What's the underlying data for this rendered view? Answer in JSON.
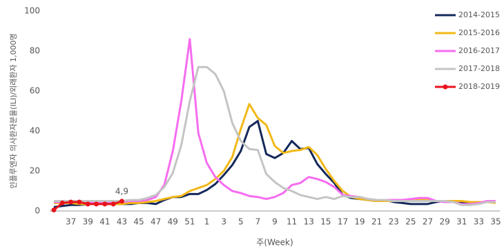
{
  "chart_data": {
    "type": "line",
    "y_label": "인플루엔자 의사환자분율(ILI)/외래환자 1,000명",
    "x_label": "주(Week)",
    "categories": [
      null,
      null,
      "37",
      null,
      "39",
      null,
      "41",
      null,
      "43",
      null,
      "45",
      null,
      "47",
      null,
      "49",
      null,
      "51",
      null,
      "1",
      null,
      "3",
      null,
      "5",
      null,
      "7",
      null,
      "9",
      null,
      "11",
      null,
      "13",
      null,
      "15",
      null,
      "17",
      null,
      "19",
      null,
      "21",
      null,
      "23",
      null,
      "25",
      null,
      "27",
      null,
      "29",
      null,
      "31",
      null,
      "33",
      null,
      "35"
    ],
    "ylim": [
      0,
      100
    ],
    "yticks": [
      0,
      20,
      40,
      60,
      80,
      100
    ],
    "grid": false,
    "legend": "top-right",
    "series": [
      {
        "name": "2014-2015",
        "color": "#14285a",
        "values": [
          2,
          2.5,
          3,
          3,
          3.5,
          3.5,
          3.5,
          3.5,
          3.5,
          3.5,
          4,
          4,
          3.5,
          5.5,
          7,
          7,
          8.5,
          8.5,
          10.5,
          13.5,
          18,
          23,
          30,
          42,
          45,
          28.5,
          26.5,
          29,
          35,
          31,
          31.5,
          23.5,
          18.5,
          14,
          8,
          6.5,
          6,
          5.5,
          5,
          5.5,
          4.5,
          4,
          3.5,
          3.5,
          3.5,
          4.5,
          5,
          5,
          4,
          4,
          4.5,
          4.5,
          4.5
        ]
      },
      {
        "name": "2015-2016",
        "color": "#f2b817",
        "values": [
          4,
          4,
          4,
          3.5,
          3.5,
          3.5,
          3.5,
          3.5,
          3.5,
          4,
          4,
          4.5,
          5,
          6,
          7,
          7.5,
          10,
          11.5,
          13,
          16,
          20,
          27,
          41,
          53.5,
          46.5,
          43,
          32.5,
          29,
          30,
          30.5,
          32,
          28,
          21,
          15,
          10,
          7,
          6,
          5.5,
          5,
          5,
          5,
          5,
          5,
          5.5,
          5.5,
          5,
          5,
          5,
          5,
          4.5,
          4.5,
          4.5,
          4
        ]
      },
      {
        "name": "2016-2017",
        "color": "#f66cf0",
        "values": [
          4.5,
          4.5,
          4.5,
          4.5,
          4.5,
          4.5,
          4.5,
          4.5,
          4.5,
          5,
          5,
          5.5,
          7,
          13,
          30,
          55,
          86,
          39,
          24,
          17,
          13,
          10,
          9,
          7.5,
          7,
          6,
          7,
          9,
          13,
          14,
          17,
          16,
          14.5,
          12,
          8,
          7.5,
          7,
          6,
          5.5,
          5.5,
          5.5,
          5.5,
          6,
          6.5,
          6.5,
          5,
          4.5,
          4.5,
          3.5,
          3.5,
          4,
          5,
          5
        ]
      },
      {
        "name": "2017-2018",
        "color": "#c4c4c4",
        "values": [
          5,
          5,
          5,
          5,
          5,
          5,
          5,
          5,
          5,
          5.5,
          5.5,
          6.5,
          8,
          12,
          19,
          33,
          55,
          72,
          72,
          68.5,
          60,
          44,
          35,
          31,
          30.5,
          18.5,
          14.5,
          11.5,
          10,
          8,
          7,
          6,
          7,
          6,
          7.5,
          7,
          7,
          6,
          5.5,
          5.5,
          5,
          5,
          5,
          5,
          5,
          5,
          5,
          4.5,
          3,
          3,
          3.5,
          4.5,
          4.5
        ]
      },
      {
        "name": "2018-2019",
        "color": "#e8131b",
        "markers": true,
        "values": [
          0.5,
          4,
          4.5,
          4.5,
          3.5,
          3.5,
          3.5,
          3.5,
          4.9,
          null,
          null,
          null,
          null,
          null,
          null,
          null,
          null,
          null,
          null,
          null,
          null,
          null,
          null,
          null,
          null,
          null,
          null,
          null,
          null,
          null,
          null,
          null,
          null,
          null,
          null,
          null,
          null,
          null,
          null,
          null,
          null,
          null,
          null,
          null,
          null,
          null,
          null,
          null,
          null,
          null,
          null,
          null,
          null
        ],
        "value_labels": [
          null,
          null,
          null,
          null,
          null,
          null,
          null,
          null,
          "4,9",
          null,
          null,
          null,
          null,
          null,
          null,
          null,
          null,
          null,
          null,
          null,
          null,
          null,
          null,
          null,
          null,
          null,
          null,
          null,
          null,
          null,
          null,
          null,
          null,
          null,
          null,
          null,
          null,
          null,
          null,
          null,
          null,
          null,
          null,
          null,
          null,
          null,
          null,
          null,
          null,
          null,
          null,
          null,
          null
        ]
      }
    ]
  }
}
